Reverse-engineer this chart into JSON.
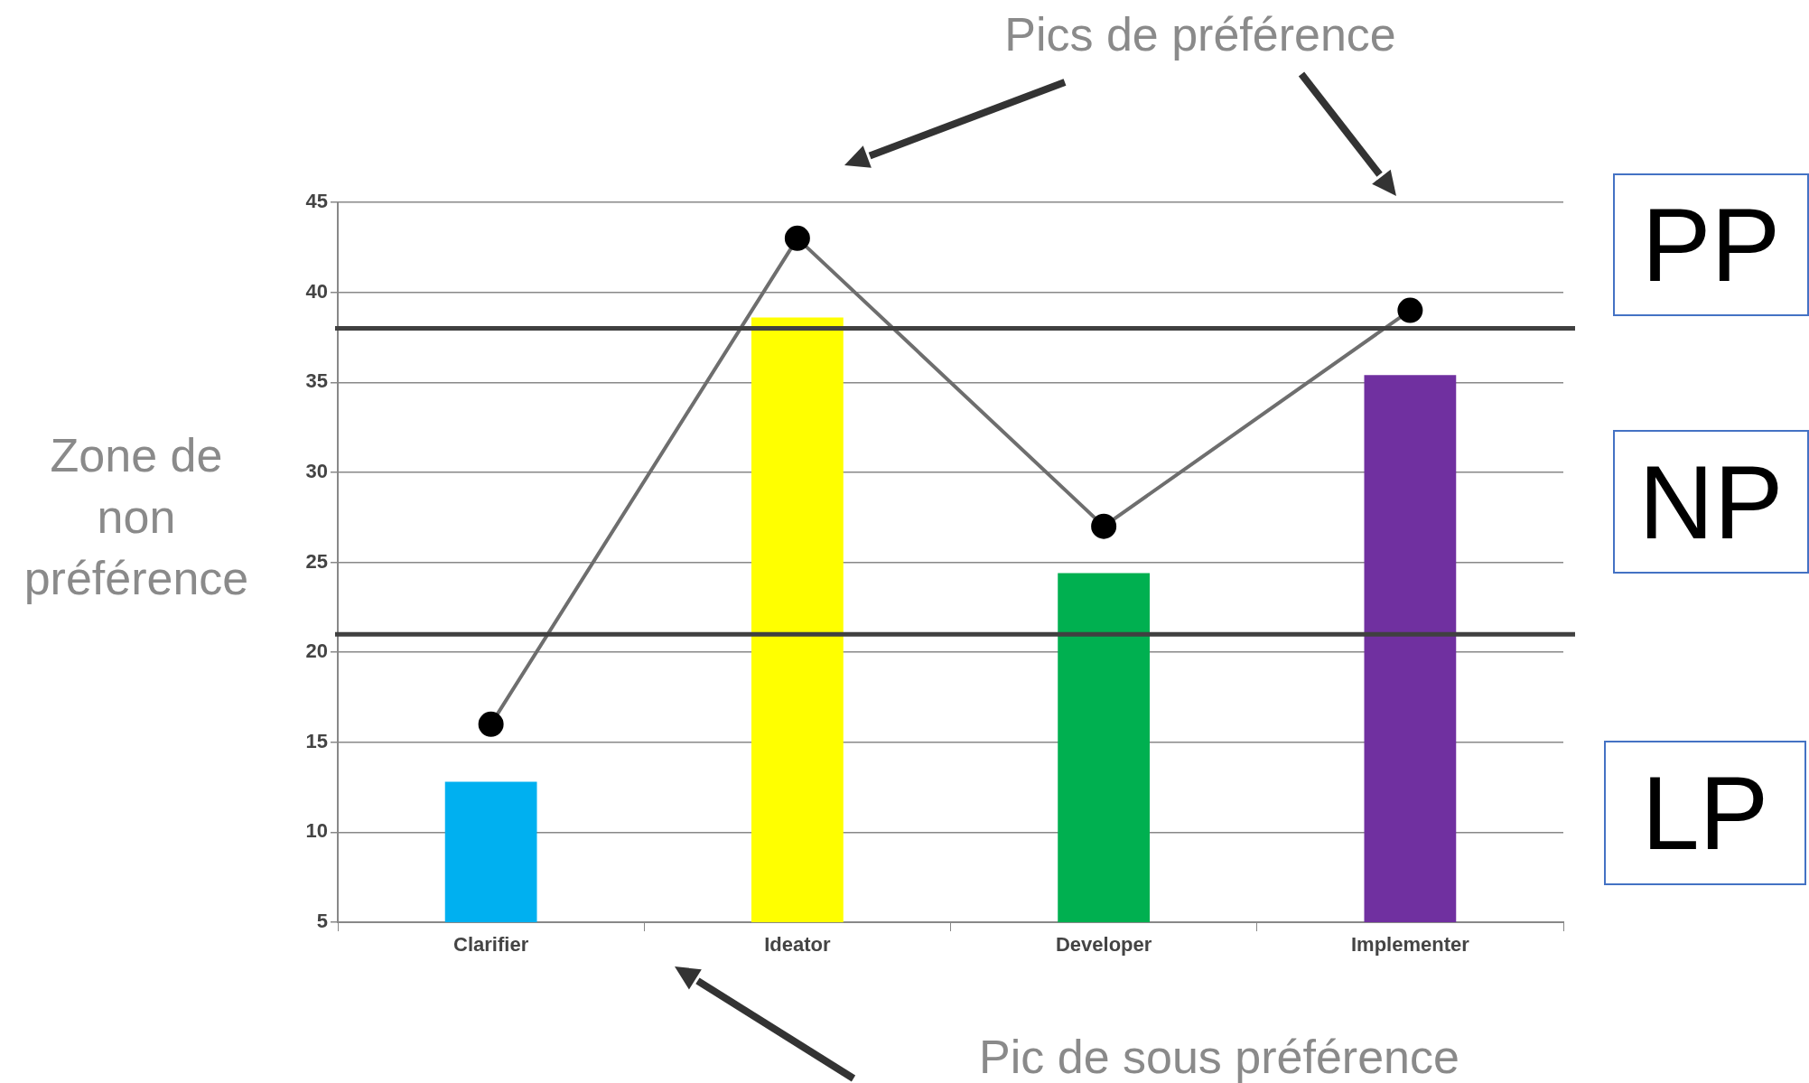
{
  "chart_data": {
    "type": "bar",
    "categories": [
      "Clarifier",
      "Ideator",
      "Developer",
      "Implementer"
    ],
    "series": [
      {
        "colors": [
          "#00b0f0",
          "#ffff00",
          "#00b050",
          "#7030a0"
        ],
        "values": [
          12.8,
          38.6,
          24.4,
          35.4
        ]
      },
      {
        "type": "line",
        "color": "#6e6e6e",
        "marker": "circle",
        "values": [
          16,
          43,
          27,
          39
        ]
      }
    ],
    "ylim": [
      5,
      45
    ],
    "yticks": [
      5,
      10,
      15,
      20,
      25,
      30,
      35,
      40,
      45
    ],
    "grid": "y",
    "legend": false,
    "ref_lines": [
      {
        "axis": "y",
        "value": 38,
        "color": "#404040"
      },
      {
        "axis": "y",
        "value": 21,
        "color": "#404040"
      }
    ],
    "annotations": [
      "Pics de préférence",
      "Zone de non préférence",
      "Pic de sous préférence",
      "PP",
      "NP",
      "LP"
    ]
  }
}
